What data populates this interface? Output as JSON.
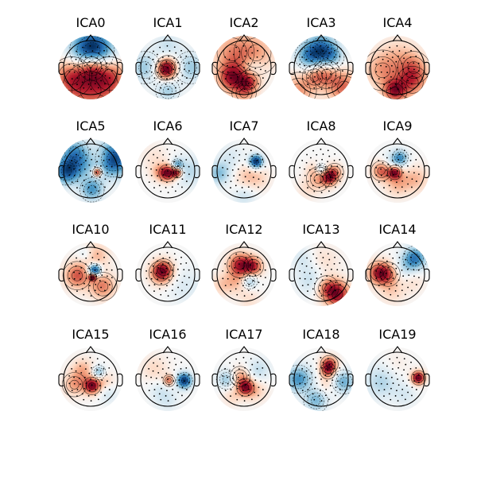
{
  "figure": {
    "components": [
      {
        "title": "ICA0",
        "colormap": "RdBu_r",
        "sources": [
          [
            0.05,
            -0.62,
            -1.0,
            0.55
          ],
          [
            0.05,
            -0.05,
            0.55,
            0.35
          ],
          [
            -0.7,
            0.35,
            0.5,
            0.5
          ],
          [
            0.7,
            0.35,
            0.5,
            0.5
          ],
          [
            0.0,
            0.85,
            0.45,
            0.7
          ]
        ]
      },
      {
        "title": "ICA1",
        "colormap": "RdBu_r",
        "sources": [
          [
            0.0,
            0.0,
            1.0,
            0.3
          ],
          [
            -0.1,
            0.1,
            0.7,
            0.25
          ],
          [
            -0.85,
            0.0,
            -0.55,
            0.4
          ],
          [
            0.85,
            0.0,
            -0.55,
            0.4
          ],
          [
            0.0,
            -0.8,
            -0.35,
            0.35
          ],
          [
            0.0,
            0.85,
            -0.5,
            0.3
          ]
        ]
      },
      {
        "title": "ICA2",
        "colormap": "RdBu_r",
        "sources": [
          [
            -0.45,
            0.38,
            1.0,
            0.38
          ],
          [
            0.2,
            0.52,
            0.7,
            0.28
          ],
          [
            0.45,
            -0.55,
            0.45,
            0.55
          ],
          [
            -0.45,
            -0.55,
            0.5,
            0.55
          ],
          [
            0.3,
            0.05,
            -0.35,
            0.28
          ],
          [
            0.0,
            0.95,
            0.45,
            0.3
          ]
        ]
      },
      {
        "title": "ICA3",
        "colormap": "RdBu_r",
        "sources": [
          [
            0.0,
            -0.72,
            -1.0,
            0.4
          ],
          [
            -0.45,
            -0.42,
            -0.75,
            0.35
          ],
          [
            0.4,
            -0.4,
            -0.6,
            0.3
          ],
          [
            0.2,
            0.25,
            0.55,
            0.35
          ],
          [
            -0.25,
            0.35,
            0.45,
            0.3
          ],
          [
            0.85,
            0.75,
            0.8,
            0.45
          ],
          [
            -0.85,
            0.85,
            0.6,
            0.45
          ]
        ]
      },
      {
        "title": "ICA4",
        "colormap": "RdBu_r",
        "sources": [
          [
            -0.1,
            0.88,
            1.0,
            0.3
          ],
          [
            0.55,
            0.55,
            0.7,
            0.4
          ],
          [
            -0.55,
            0.1,
            0.55,
            0.5
          ],
          [
            0.6,
            0.0,
            0.5,
            0.4
          ],
          [
            0.1,
            -0.55,
            0.25,
            0.5
          ]
        ]
      },
      {
        "title": "ICA5",
        "colormap": "RdBu_r",
        "sources": [
          [
            0.25,
            0.05,
            1.0,
            0.12
          ],
          [
            0.85,
            -0.45,
            -1.0,
            0.45
          ],
          [
            -0.9,
            0.0,
            -0.9,
            0.35
          ],
          [
            -0.6,
            -0.7,
            -0.6,
            0.35
          ],
          [
            0.05,
            0.7,
            -0.6,
            0.3
          ],
          [
            -0.25,
            -0.2,
            -0.3,
            0.35
          ],
          [
            0.4,
            -0.5,
            0.25,
            0.25
          ]
        ]
      },
      {
        "title": "ICA6",
        "colormap": "RdBu_r",
        "sources": [
          [
            0.0,
            0.08,
            1.0,
            0.22
          ],
          [
            0.35,
            0.05,
            0.9,
            0.14
          ],
          [
            0.35,
            -0.22,
            -0.6,
            0.15
          ],
          [
            -0.35,
            0.05,
            0.3,
            0.22
          ],
          [
            0.8,
            0.0,
            -0.3,
            0.4
          ],
          [
            -0.5,
            -0.5,
            0.15,
            0.35
          ]
        ]
      },
      {
        "title": "ICA7",
        "colormap": "RdBu_r",
        "sources": [
          [
            0.45,
            -0.35,
            -1.0,
            0.18
          ],
          [
            -0.95,
            0.1,
            -0.4,
            0.3
          ],
          [
            0.1,
            0.2,
            0.25,
            0.35
          ],
          [
            0.0,
            0.95,
            -0.2,
            0.3
          ],
          [
            -0.5,
            -0.5,
            -0.15,
            0.35
          ],
          [
            0.6,
            0.3,
            0.15,
            0.3
          ]
        ]
      },
      {
        "title": "ICA8",
        "colormap": "RdBu_r",
        "sources": [
          [
            0.3,
            0.25,
            1.0,
            0.22
          ],
          [
            0.5,
            0.05,
            0.6,
            0.22
          ],
          [
            -0.1,
            0.3,
            0.45,
            0.3
          ],
          [
            0.0,
            -0.05,
            -0.55,
            0.16
          ],
          [
            -0.3,
            -0.05,
            0.25,
            0.2
          ],
          [
            -0.55,
            0.7,
            0.2,
            0.3
          ]
        ]
      },
      {
        "title": "ICA9",
        "colormap": "RdBu_r",
        "sources": [
          [
            -0.1,
            0.05,
            1.0,
            0.18
          ],
          [
            -0.6,
            0.0,
            0.7,
            0.25
          ],
          [
            0.1,
            -0.5,
            -0.55,
            0.2
          ],
          [
            -0.1,
            -0.3,
            -0.35,
            0.3
          ],
          [
            0.0,
            0.45,
            0.4,
            0.35
          ],
          [
            0.7,
            0.3,
            0.35,
            0.35
          ]
        ]
      },
      {
        "title": "ICA10",
        "colormap": "RdBu_r",
        "sources": [
          [
            0.15,
            -0.15,
            -1.0,
            0.17
          ],
          [
            0.08,
            0.1,
            0.9,
            0.1
          ],
          [
            -0.5,
            0.05,
            0.55,
            0.35
          ],
          [
            0.45,
            0.45,
            0.45,
            0.35
          ],
          [
            0.2,
            -0.7,
            0.3,
            0.35
          ],
          [
            -0.2,
            -0.75,
            -0.2,
            0.2
          ]
        ]
      },
      {
        "title": "ICA11",
        "colormap": "RdBu_r",
        "sources": [
          [
            -0.25,
            -0.05,
            1.0,
            0.3
          ],
          [
            -0.15,
            -0.2,
            0.5,
            0.25
          ],
          [
            0.7,
            0.45,
            -0.2,
            0.5
          ]
        ]
      },
      {
        "title": "ICA12",
        "colormap": "RdBu_r",
        "sources": [
          [
            -0.15,
            -0.35,
            1.0,
            0.32
          ],
          [
            0.35,
            -0.3,
            0.8,
            0.25
          ],
          [
            -0.3,
            0.3,
            0.3,
            0.3
          ],
          [
            0.2,
            0.25,
            -0.5,
            0.2
          ],
          [
            -0.85,
            0.4,
            0.3,
            0.3
          ],
          [
            0.2,
            0.95,
            0.2,
            0.3
          ]
        ]
      },
      {
        "title": "ICA13",
        "colormap": "RdBu_r",
        "sources": [
          [
            0.6,
            0.75,
            1.0,
            0.35
          ],
          [
            0.2,
            0.5,
            0.5,
            0.3
          ],
          [
            -0.35,
            0.2,
            -0.3,
            0.4
          ],
          [
            0.1,
            -0.5,
            0.2,
            0.4
          ],
          [
            -0.7,
            -0.6,
            -0.2,
            0.3
          ]
        ]
      },
      {
        "title": "ICA14",
        "colormap": "RdBu_r",
        "sources": [
          [
            -0.7,
            -0.05,
            1.0,
            0.3
          ],
          [
            -0.35,
            0.0,
            0.6,
            0.3
          ],
          [
            0.65,
            -0.6,
            -1.0,
            0.3
          ],
          [
            0.2,
            -0.2,
            -0.3,
            0.3
          ],
          [
            -0.2,
            0.65,
            0.3,
            0.35
          ],
          [
            0.6,
            0.3,
            0.2,
            0.3
          ]
        ]
      },
      {
        "title": "ICA15",
        "colormap": "RdBu_r",
        "sources": [
          [
            0.05,
            0.25,
            1.0,
            0.22
          ],
          [
            0.3,
            -0.25,
            -0.55,
            0.18
          ],
          [
            -0.3,
            -0.35,
            0.4,
            0.3
          ],
          [
            -0.6,
            0.2,
            0.45,
            0.3
          ],
          [
            0.5,
            0.05,
            0.3,
            0.25
          ],
          [
            0.65,
            0.55,
            -0.2,
            0.25
          ]
        ]
      },
      {
        "title": "ICA16",
        "colormap": "RdBu_r",
        "sources": [
          [
            0.62,
            0.05,
            -1.0,
            0.2
          ],
          [
            0.05,
            0.05,
            0.55,
            0.15
          ],
          [
            -0.5,
            -0.4,
            0.2,
            0.35
          ],
          [
            0.0,
            0.8,
            -0.15,
            0.3
          ],
          [
            -0.3,
            0.45,
            -0.15,
            0.3
          ]
        ]
      },
      {
        "title": "ICA17",
        "colormap": "RdBu_r",
        "sources": [
          [
            0.05,
            0.3,
            1.0,
            0.22
          ],
          [
            -0.15,
            -0.1,
            0.45,
            0.25
          ],
          [
            -0.65,
            0.0,
            -0.45,
            0.25
          ],
          [
            0.55,
            -0.35,
            -0.3,
            0.3
          ],
          [
            0.45,
            0.45,
            0.3,
            0.3
          ],
          [
            -0.45,
            0.65,
            0.25,
            0.25
          ]
        ]
      },
      {
        "title": "ICA18",
        "colormap": "RdBu_r",
        "sources": [
          [
            0.3,
            -0.55,
            1.0,
            0.22
          ],
          [
            0.25,
            -0.3,
            0.6,
            0.2
          ],
          [
            -0.85,
            0.0,
            -0.8,
            0.35
          ],
          [
            0.85,
            0.1,
            -0.65,
            0.3
          ],
          [
            -0.2,
            0.8,
            -0.6,
            0.3
          ],
          [
            0.2,
            0.2,
            0.25,
            0.25
          ]
        ]
      },
      {
        "title": "ICA19",
        "colormap": "RdBu_r",
        "sources": [
          [
            0.78,
            -0.05,
            1.0,
            0.18
          ],
          [
            -0.6,
            0.1,
            -0.3,
            0.45
          ],
          [
            -0.1,
            -0.5,
            0.1,
            0.35
          ],
          [
            0.3,
            0.6,
            -0.15,
            0.3
          ]
        ]
      }
    ]
  }
}
